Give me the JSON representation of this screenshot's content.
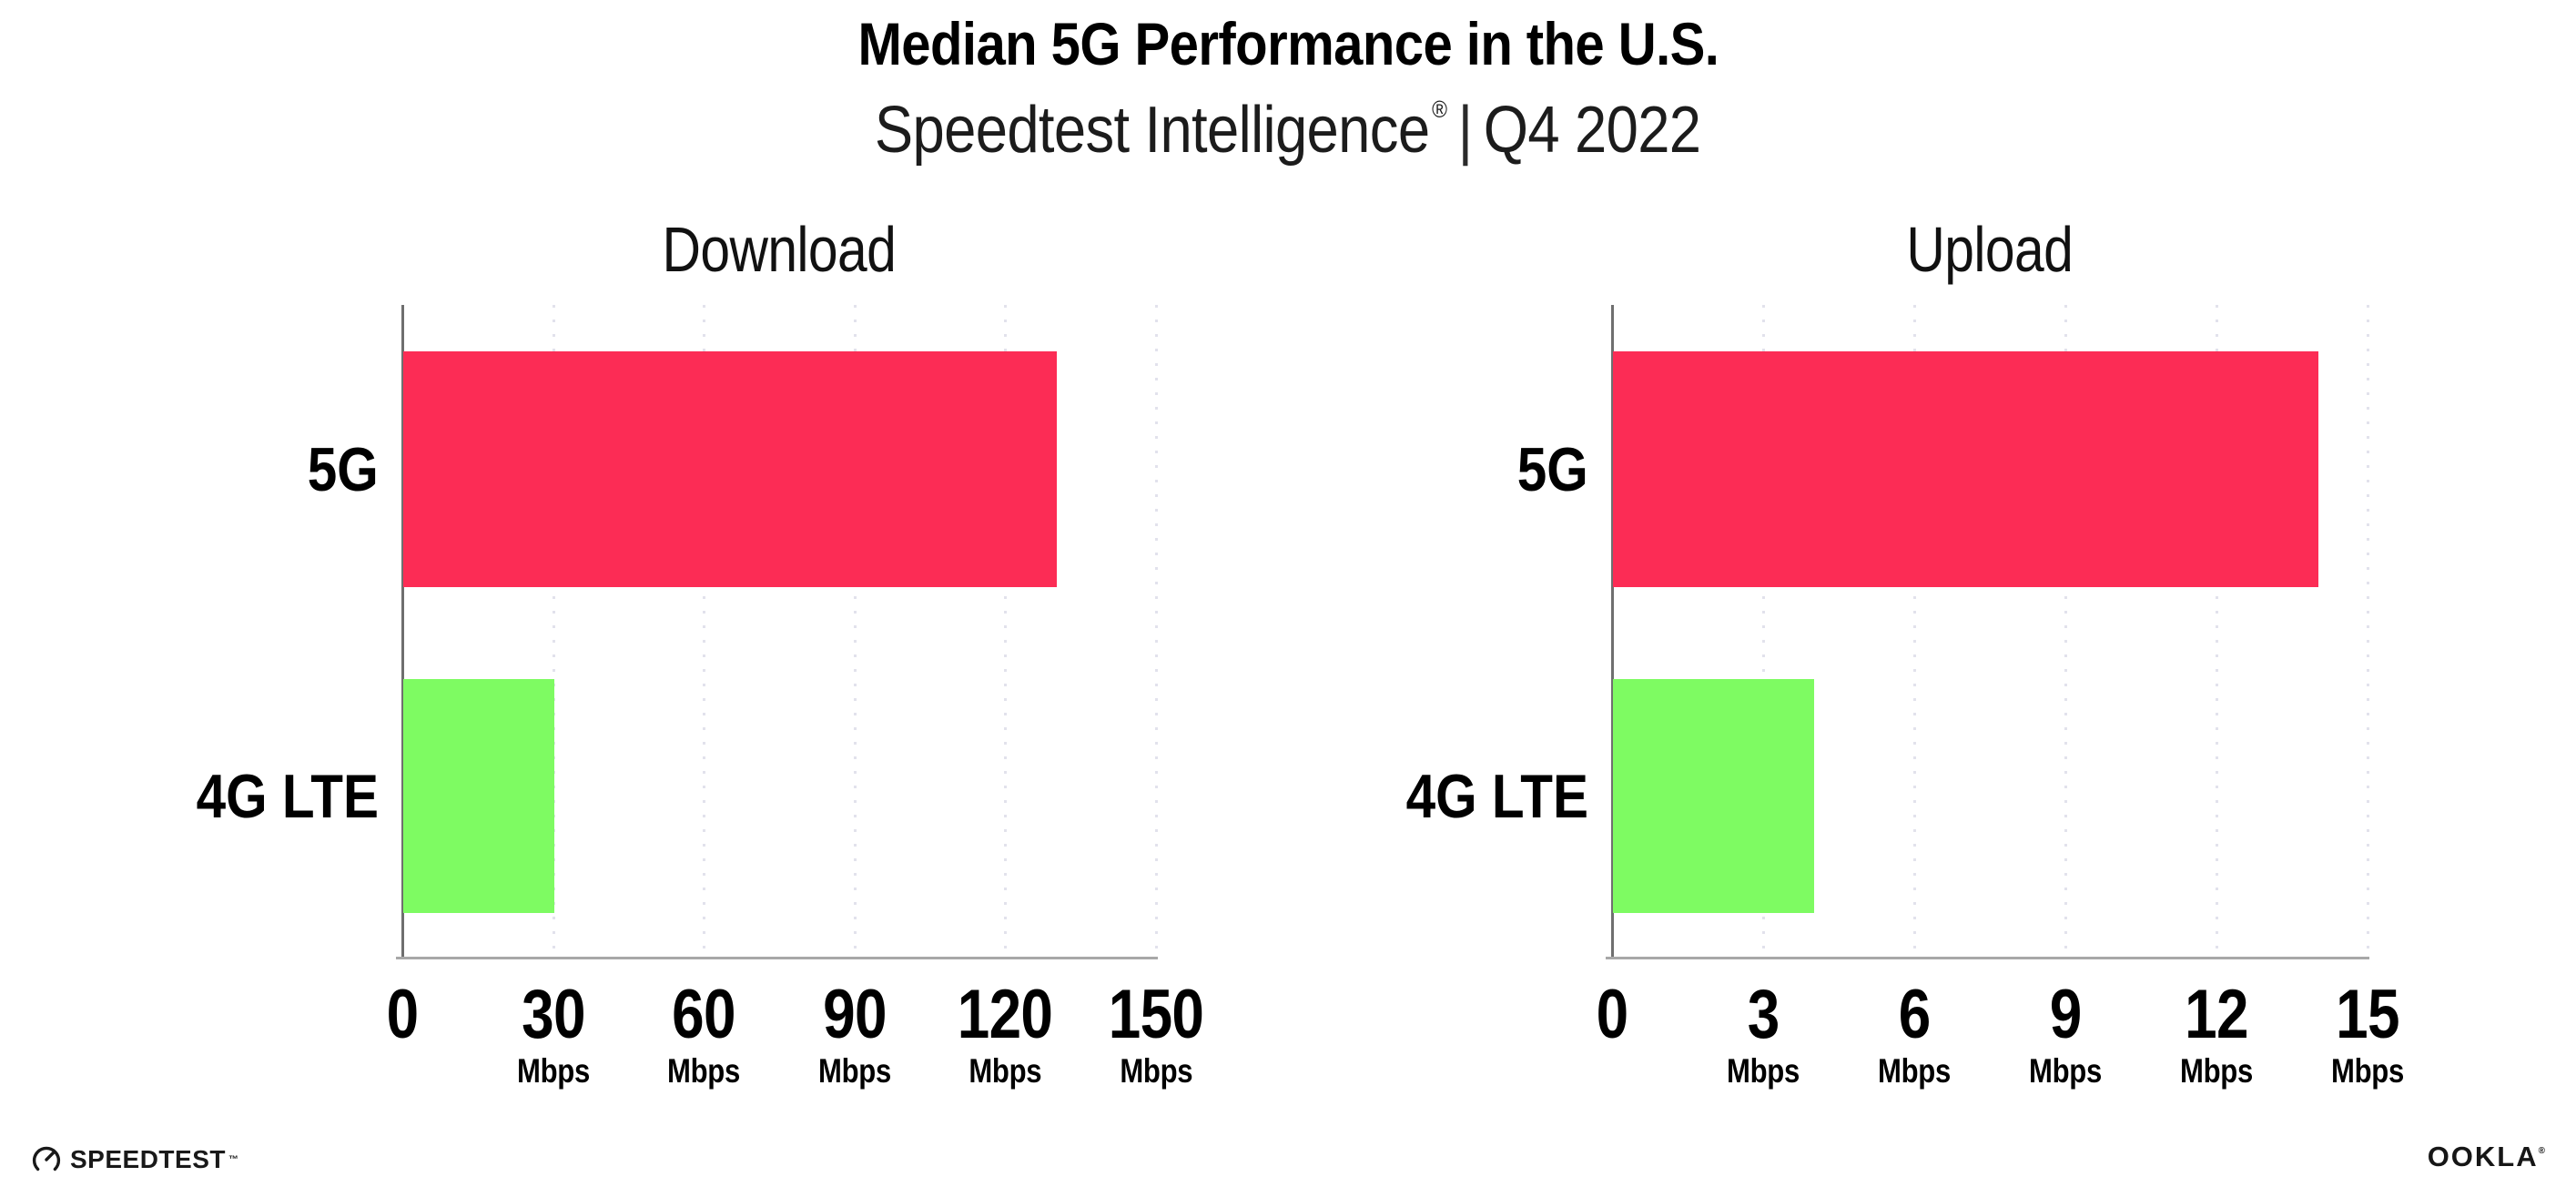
{
  "header": {
    "title": "Median 5G Performance in the U.S.",
    "subtitle_brand": "Speedtest Intelligence",
    "subtitle_reg": "®",
    "subtitle_separator": "|",
    "subtitle_period": "Q4 2022"
  },
  "colors": {
    "bar_5g": "#FC2C55",
    "bar_4g_lte": "#7EFB62",
    "gridline": "#E2E2EC",
    "x_axis": "#A8A8A8",
    "y_axis": "#6F6F6F",
    "text": "#000000"
  },
  "chart_data": [
    {
      "type": "bar",
      "orientation": "horizontal",
      "title": "Download",
      "categories": [
        "5G",
        "4G LTE"
      ],
      "values": [
        130,
        30
      ],
      "colors": [
        "#FC2C55",
        "#7EFB62"
      ],
      "xlim": [
        0,
        150
      ],
      "xticks": [
        0,
        30,
        60,
        90,
        120,
        150
      ],
      "tick_unit_label": "Mbps",
      "unit": "Mbps",
      "grid": "dotted-vertical",
      "legend": "none"
    },
    {
      "type": "bar",
      "orientation": "horizontal",
      "title": "Upload",
      "categories": [
        "5G",
        "4G LTE"
      ],
      "values": [
        14,
        4
      ],
      "colors": [
        "#FC2C55",
        "#7EFB62"
      ],
      "xlim": [
        0,
        15
      ],
      "xticks": [
        0,
        3,
        6,
        9,
        12,
        15
      ],
      "tick_unit_label": "Mbps",
      "unit": "Mbps",
      "grid": "dotted-vertical",
      "legend": "none"
    }
  ],
  "footer": {
    "speedtest_label": "SPEEDTEST",
    "speedtest_tm": "™",
    "ookla_label": "OOKLA",
    "ookla_reg": "®"
  }
}
